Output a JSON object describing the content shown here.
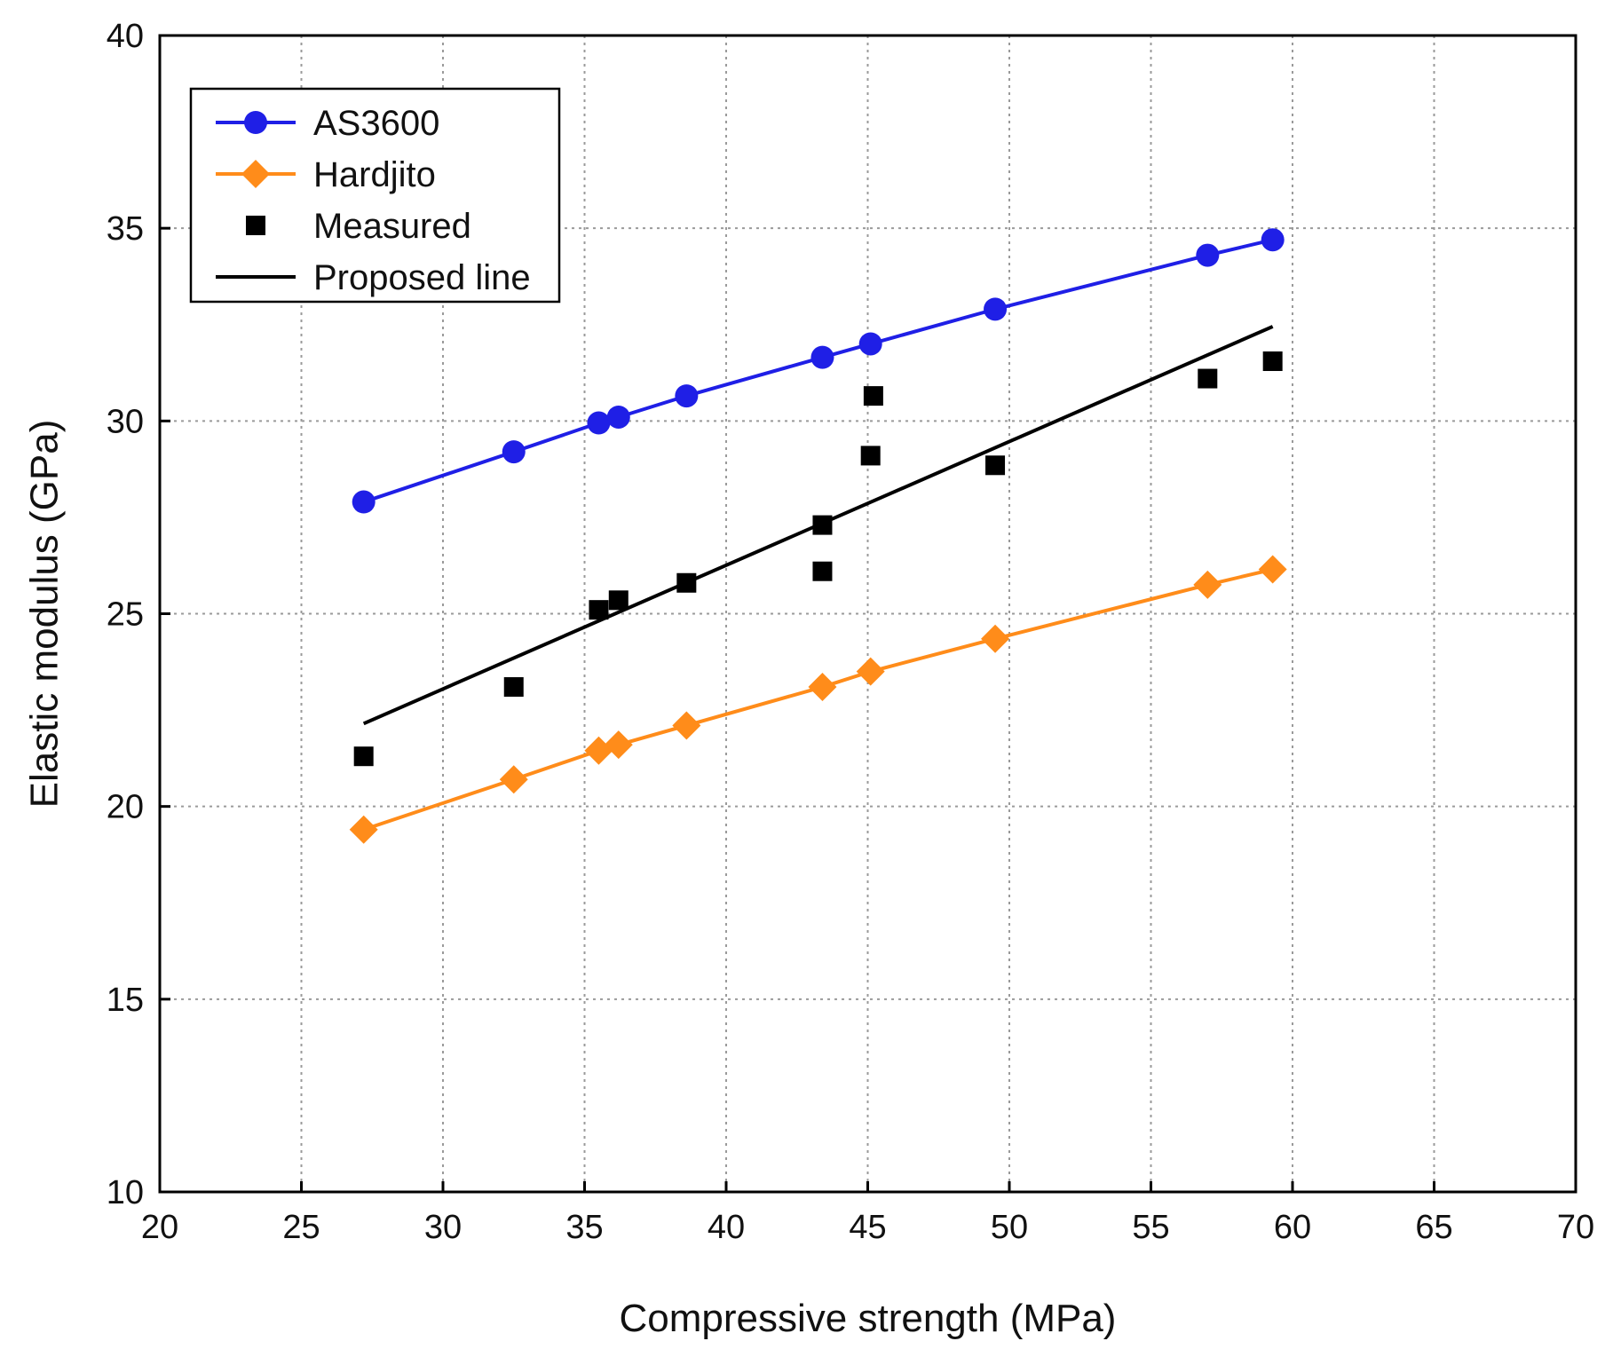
{
  "chart_data": {
    "type": "scatter",
    "title": "",
    "xlabel": "Compressive strength (MPa)",
    "ylabel": "Elastic modulus (GPa)",
    "xlim": [
      20,
      70
    ],
    "ylim": [
      10,
      40
    ],
    "xticks": [
      20,
      25,
      30,
      35,
      40,
      45,
      50,
      55,
      60,
      65,
      70
    ],
    "yticks": [
      10,
      15,
      20,
      25,
      30,
      35,
      40
    ],
    "xtick_labels": [
      "20",
      "25",
      "30",
      "35",
      "40",
      "45",
      "50",
      "55",
      "60",
      "65",
      "70"
    ],
    "ytick_labels": [
      "10",
      "15",
      "20",
      "25",
      "30",
      "35",
      "40"
    ],
    "grid": true,
    "legend_position": "top-left",
    "series": [
      {
        "name": "AS3600",
        "kind": "line-marker",
        "marker": "circle",
        "color": "#1f1fe6",
        "x": [
          27.2,
          32.5,
          35.5,
          36.2,
          38.6,
          43.4,
          45.1,
          49.5,
          57.0,
          59.3
        ],
        "y": [
          27.9,
          29.2,
          29.95,
          30.1,
          30.65,
          31.65,
          32.0,
          32.9,
          34.3,
          34.7
        ]
      },
      {
        "name": "Hardjito",
        "kind": "line-marker",
        "marker": "diamond",
        "color": "#ff8c1a",
        "x": [
          27.2,
          32.5,
          35.5,
          36.2,
          38.6,
          43.4,
          45.1,
          49.5,
          57.0,
          59.3
        ],
        "y": [
          19.4,
          20.7,
          21.45,
          21.6,
          22.1,
          23.1,
          23.5,
          24.35,
          25.75,
          26.15
        ]
      },
      {
        "name": "Measured",
        "kind": "scatter",
        "marker": "square",
        "color": "#000000",
        "x": [
          27.2,
          32.5,
          35.5,
          36.2,
          38.6,
          43.4,
          43.4,
          45.1,
          45.2,
          49.5,
          57.0,
          59.3
        ],
        "y": [
          21.3,
          23.1,
          25.1,
          25.35,
          25.8,
          26.1,
          27.3,
          29.1,
          30.65,
          28.85,
          31.1,
          31.55
        ]
      },
      {
        "name": "Proposed line",
        "kind": "line",
        "color": "#000000",
        "x": [
          27.2,
          59.3
        ],
        "y": [
          22.15,
          32.45
        ]
      }
    ]
  }
}
